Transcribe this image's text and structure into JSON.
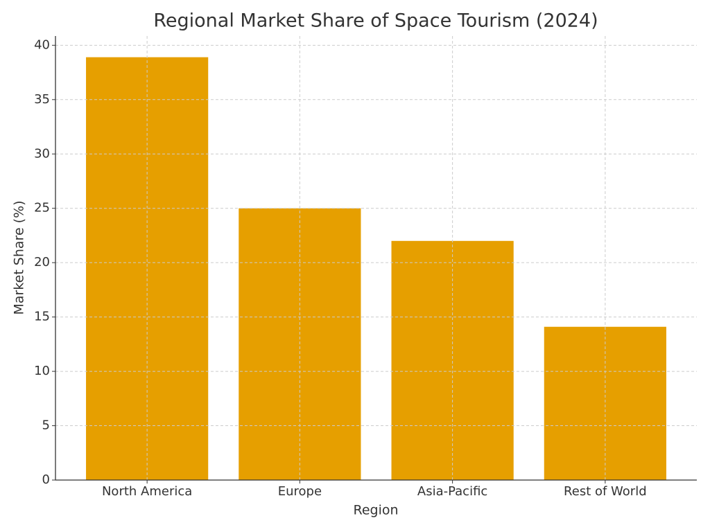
{
  "chart_data": {
    "type": "bar",
    "title": "Regional Market Share of Space Tourism (2024)",
    "x_label": "Region",
    "y_label": "Market Share (%)",
    "categories": [
      "North America",
      "Europe",
      "Asia-Pacific",
      "Rest of World"
    ],
    "values": [
      38.9,
      25,
      22,
      14.1
    ],
    "color": "#e69f00",
    "ylim": [
      0,
      40.85
    ],
    "yticks": [
      0,
      5,
      10,
      15,
      20,
      25,
      30,
      35,
      40
    ],
    "grid": true
  }
}
